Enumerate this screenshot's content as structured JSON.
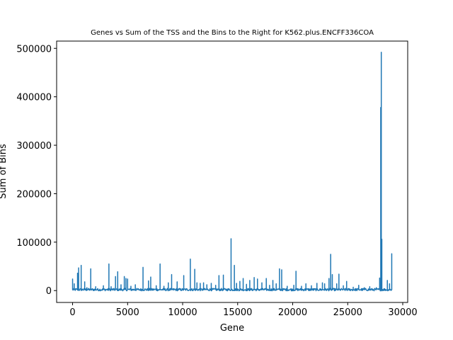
{
  "chart_data": {
    "type": "line",
    "title": "Genes vs Sum of the TSS and the Bins to the Right for K562.plus.ENCFF336COA",
    "xlabel": "Gene",
    "ylabel": "Sum of Bins",
    "xlim": [
      -1450,
      30450
    ],
    "ylim": [
      -24500,
      515000
    ],
    "xticks": [
      0,
      5000,
      10000,
      15000,
      20000,
      25000,
      30000
    ],
    "yticks": [
      0,
      100000,
      200000,
      300000,
      400000,
      500000
    ],
    "grid": false,
    "baseline": 2000,
    "series": [
      {
        "color": "#1f77b4",
        "peaks": [
          [
            0,
            24000
          ],
          [
            150,
            14000
          ],
          [
            450,
            36000
          ],
          [
            550,
            47000
          ],
          [
            780,
            52000
          ],
          [
            1100,
            18000
          ],
          [
            1300,
            6000
          ],
          [
            1650,
            45000
          ],
          [
            2100,
            8000
          ],
          [
            2800,
            10000
          ],
          [
            3300,
            55000
          ],
          [
            3500,
            8000
          ],
          [
            3900,
            29000
          ],
          [
            4100,
            39000
          ],
          [
            4400,
            12000
          ],
          [
            4700,
            29000
          ],
          [
            4850,
            25000
          ],
          [
            5000,
            24000
          ],
          [
            5300,
            9000
          ],
          [
            5700,
            12000
          ],
          [
            6400,
            48000
          ],
          [
            6900,
            20000
          ],
          [
            7100,
            28000
          ],
          [
            7600,
            10000
          ],
          [
            7950,
            55000
          ],
          [
            8300,
            9000
          ],
          [
            8700,
            16000
          ],
          [
            9000,
            33000
          ],
          [
            9500,
            18000
          ],
          [
            10100,
            31000
          ],
          [
            10700,
            65000
          ],
          [
            11100,
            44000
          ],
          [
            11300,
            16000
          ],
          [
            11600,
            15000
          ],
          [
            11900,
            16000
          ],
          [
            12200,
            12000
          ],
          [
            12600,
            15000
          ],
          [
            13000,
            11000
          ],
          [
            13300,
            31000
          ],
          [
            13700,
            32000
          ],
          [
            14400,
            107000
          ],
          [
            14700,
            52000
          ],
          [
            14900,
            15000
          ],
          [
            15200,
            19000
          ],
          [
            15500,
            25000
          ],
          [
            15800,
            13000
          ],
          [
            16100,
            21000
          ],
          [
            16500,
            27000
          ],
          [
            16800,
            24000
          ],
          [
            17200,
            16000
          ],
          [
            17600,
            25000
          ],
          [
            17900,
            11000
          ],
          [
            18200,
            21000
          ],
          [
            18500,
            14000
          ],
          [
            18800,
            45000
          ],
          [
            19000,
            43000
          ],
          [
            19500,
            9000
          ],
          [
            20100,
            11000
          ],
          [
            20300,
            40000
          ],
          [
            20800,
            9000
          ],
          [
            21200,
            14000
          ],
          [
            21700,
            10000
          ],
          [
            22200,
            15000
          ],
          [
            22700,
            16000
          ],
          [
            22900,
            14000
          ],
          [
            23300,
            25000
          ],
          [
            23450,
            75000
          ],
          [
            23600,
            33000
          ],
          [
            24000,
            14000
          ],
          [
            24200,
            34000
          ],
          [
            24600,
            10000
          ],
          [
            24900,
            19000
          ],
          [
            25500,
            7000
          ],
          [
            26000,
            11000
          ],
          [
            26500,
            6000
          ],
          [
            27000,
            8000
          ],
          [
            27600,
            6000
          ],
          [
            27900,
            26000
          ],
          [
            28000,
            378000
          ],
          [
            28050,
            492000
          ],
          [
            28100,
            106000
          ],
          [
            28600,
            21000
          ],
          [
            28800,
            14000
          ],
          [
            29000,
            76000
          ]
        ],
        "x_end": 29050
      }
    ]
  }
}
